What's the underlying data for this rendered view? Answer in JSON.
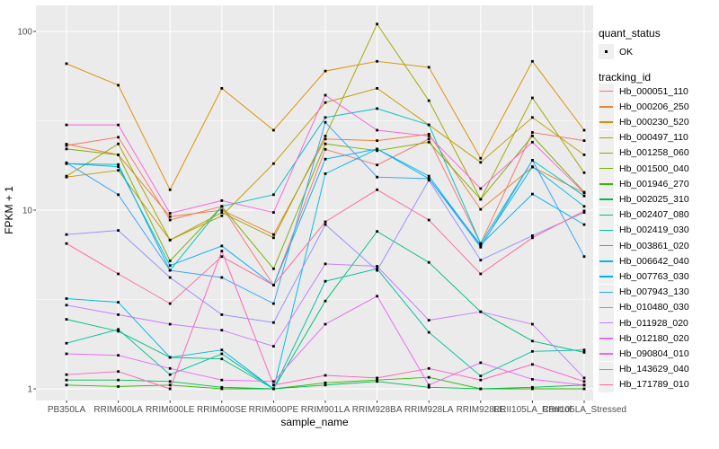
{
  "figure": {
    "y_axis": {
      "title": "FPKM + 1",
      "tick_labels": [
        "100",
        "10",
        "1"
      ]
    },
    "x_axis": {
      "title": "sample_name"
    },
    "legend": {
      "quant_status_title": "quant_status",
      "quant_status_items": [
        {
          "label": "OK"
        }
      ],
      "tracking_title": "tracking_id"
    }
  },
  "colors": {
    "panel_background": "#EBEBEB",
    "grid_line": "#FFFFFF",
    "axis_text": "#4D4D4D",
    "tick_mark": "#333333",
    "point": "#000000",
    "legend_key_background": "#EFEFEF"
  },
  "chart_data": {
    "type": "line",
    "title": "",
    "xlabel": "sample_name",
    "ylabel": "FPKM + 1",
    "yscale": "log10",
    "ylim": [
      1,
      120
    ],
    "y_ticks": [
      1,
      10,
      100
    ],
    "grid": true,
    "legend_position": "right",
    "marker": "square",
    "x_categories": [
      "PB350LA",
      "RRIM600LA",
      "RRIM600LE",
      "RRIM600SE",
      "RRIM600PE",
      "RRIM901LA",
      "RRIM928BA",
      "RRIM928LA",
      "RRIM928LE",
      "RRII105LA_Control",
      "RRII105LA_Stressed"
    ],
    "quant_status": "OK",
    "series": [
      {
        "name": "Hb_000051_110",
        "color": "#F8766D",
        "values": [
          23,
          25.6,
          8.8,
          10.5,
          3.8,
          21.9,
          17.9,
          25,
          6.5,
          27.2,
          24.5
        ]
      },
      {
        "name": "Hb_000206_250",
        "color": "#EA8331",
        "values": [
          23.4,
          20.4,
          9.2,
          10.0,
          7.3,
          25.0,
          24.5,
          26.6,
          10.1,
          17.4,
          12.5
        ]
      },
      {
        "name": "Hb_000230_520",
        "color": "#D89000",
        "values": [
          66,
          50,
          13,
          48,
          28,
          60,
          68,
          63,
          19.5,
          68,
          28
        ]
      },
      {
        "name": "Hb_000497_110",
        "color": "#C09B00",
        "values": [
          15.3,
          16.7,
          6.8,
          9.3,
          18.2,
          40,
          48,
          30,
          18.5,
          33,
          20.4
        ]
      },
      {
        "name": "Hb_001258_060",
        "color": "#A3A500",
        "values": [
          15.5,
          23.5,
          6.8,
          9.7,
          7.0,
          26,
          110,
          41,
          11.5,
          42.5,
          16.2
        ]
      },
      {
        "name": "Hb_001500_040",
        "color": "#7CAE00",
        "values": [
          22,
          20.4,
          5.2,
          10.5,
          4.7,
          23.5,
          21.5,
          24,
          11.5,
          26,
          12.6
        ]
      },
      {
        "name": "Hb_001946_270",
        "color": "#39B600",
        "values": [
          1.05,
          1.03,
          1.05,
          1.0,
          1.0,
          1.08,
          1.12,
          1.16,
          1.0,
          1.0,
          1.0
        ]
      },
      {
        "name": "Hb_002025_310",
        "color": "#00BB4E",
        "values": [
          1.12,
          1.12,
          1.1,
          1.02,
          1.0,
          1.05,
          1.1,
          1.02,
          1.0,
          1.02,
          1.05
        ]
      },
      {
        "name": "Hb_002407_080",
        "color": "#00BF7D",
        "values": [
          2.45,
          2.1,
          1.5,
          1.47,
          1.0,
          3.1,
          7.6,
          5.1,
          2.7,
          1.85,
          1.6
        ]
      },
      {
        "name": "Hb_002419_030",
        "color": "#00C1A3",
        "values": [
          1.8,
          2.15,
          1.2,
          1.57,
          1.0,
          4.0,
          4.7,
          2.07,
          1.18,
          1.62,
          1.65
        ]
      },
      {
        "name": "Hb_003861_020",
        "color": "#00BFC4",
        "values": [
          18.2,
          18,
          4.6,
          10.5,
          12.2,
          33,
          37,
          30,
          6.5,
          19,
          12
        ]
      },
      {
        "name": "Hb_006642_040",
        "color": "#00BAE0",
        "values": [
          3.2,
          3.05,
          1.5,
          1.65,
          1.0,
          16,
          22,
          15.5,
          6.3,
          17.5,
          10.5
        ]
      },
      {
        "name": "Hb_007763_030",
        "color": "#00B0F6",
        "values": [
          18.2,
          17.5,
          4.9,
          6.3,
          3.8,
          19.3,
          22,
          15,
          6.4,
          12.3,
          8.3
        ]
      },
      {
        "name": "Hb_007943_130",
        "color": "#35A2FF",
        "values": [
          18.4,
          12.2,
          4.6,
          4.2,
          3.0,
          31,
          15.3,
          15,
          6.2,
          19,
          5.5
        ]
      },
      {
        "name": "Hb_010480_030",
        "color": "#9590FF",
        "values": [
          7.3,
          7.7,
          4.2,
          2.6,
          2.35,
          8.3,
          4.6,
          14.7,
          5.25,
          7.2,
          9.7
        ]
      },
      {
        "name": "Hb_011928_020",
        "color": "#C77CFF",
        "values": [
          2.94,
          2.6,
          2.3,
          2.13,
          1.73,
          5.0,
          4.85,
          2.42,
          2.7,
          2.3,
          1.15
        ]
      },
      {
        "name": "Hb_012180_020",
        "color": "#E76BF3",
        "values": [
          1.57,
          1.54,
          1.3,
          1.12,
          1.1,
          2.3,
          3.3,
          1.05,
          1.4,
          1.13,
          1.05
        ]
      },
      {
        "name": "Hb_090804_010",
        "color": "#FA62DB",
        "values": [
          30,
          30,
          9.6,
          11.3,
          9.7,
          44,
          28,
          26,
          13.2,
          24,
          12.5
        ]
      },
      {
        "name": "Hb_143629_040",
        "color": "#FF62BC",
        "values": [
          1.2,
          1.25,
          1.0,
          5.9,
          1.05,
          1.19,
          1.15,
          1.3,
          1.12,
          1.37,
          1.1
        ]
      },
      {
        "name": "Hb_171789_010",
        "color": "#FF6A98",
        "values": [
          6.5,
          4.4,
          3.0,
          5.5,
          3.8,
          8.6,
          13.0,
          8.8,
          4.4,
          7.0,
          9.9
        ]
      }
    ]
  }
}
